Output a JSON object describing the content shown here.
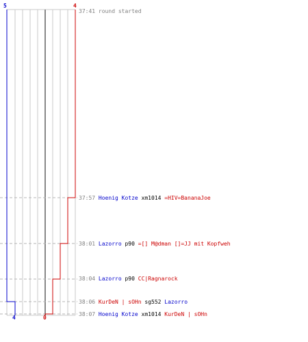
{
  "teams": {
    "blue": {
      "color": "#0000cc",
      "start_score": "5",
      "end_score": "4"
    },
    "red": {
      "color": "#cc0000",
      "start_score": "4",
      "end_score": "0"
    }
  },
  "events": [
    {
      "time": "37:41",
      "note": "round started"
    },
    {
      "time": "37:57",
      "attacker": "Hoenig Kotze",
      "attacker_team": "blue",
      "weapon": "xm1014",
      "victim": "=HIV=BananaJoe",
      "victim_team": "red"
    },
    {
      "time": "38:01",
      "attacker": "Lazorro",
      "attacker_team": "blue",
      "weapon": "p90",
      "victim": "=[] M@dman []=JJ mit Kopfweh",
      "victim_team": "red"
    },
    {
      "time": "38:04",
      "attacker": "Lazorro",
      "attacker_team": "blue",
      "weapon": "p90",
      "victim": "CC|Ragnarock",
      "victim_team": "red"
    },
    {
      "time": "38:06",
      "attacker": "KurDeN | sOHn",
      "attacker_team": "red",
      "weapon": "sg552",
      "victim": "Lazorro",
      "victim_team": "blue"
    },
    {
      "time": "38:07",
      "attacker": "Hoenig Kotze",
      "attacker_team": "blue",
      "weapon": "xm1014",
      "victim": "KurDeN | sOHn",
      "victim_team": "red"
    }
  ],
  "timeline_data": {
    "blue_alive": [
      5,
      5,
      5,
      5,
      4,
      4
    ],
    "red_alive": [
      4,
      3,
      2,
      1,
      1,
      0
    ]
  }
}
